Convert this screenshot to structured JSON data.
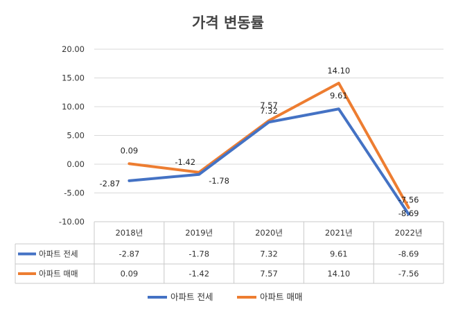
{
  "chart_data": {
    "type": "line",
    "title": "가격 변동률",
    "categories": [
      "2018년",
      "2019년",
      "2020년",
      "2021년",
      "2022년"
    ],
    "ylim": [
      -10,
      20
    ],
    "yticks": [
      "20.00",
      "15.00",
      "10.00",
      "5.00",
      "0.00",
      "-5.00",
      "-10.00"
    ],
    "grid": true,
    "legend_position": "bottom",
    "series": [
      {
        "name": "아파트 전세",
        "color": "#4472C4",
        "values": [
          -2.87,
          -1.78,
          7.32,
          9.61,
          -8.69
        ],
        "labels": [
          "-2.87",
          "-1.78",
          "7.32",
          "9.61",
          "-8.69"
        ]
      },
      {
        "name": "아파트 매매",
        "color": "#ED7D31",
        "values": [
          0.09,
          -1.42,
          7.57,
          14.1,
          -7.56
        ],
        "labels": [
          "0.09",
          "-1.42",
          "7.57",
          "14.10",
          "-7.56"
        ]
      }
    ]
  }
}
